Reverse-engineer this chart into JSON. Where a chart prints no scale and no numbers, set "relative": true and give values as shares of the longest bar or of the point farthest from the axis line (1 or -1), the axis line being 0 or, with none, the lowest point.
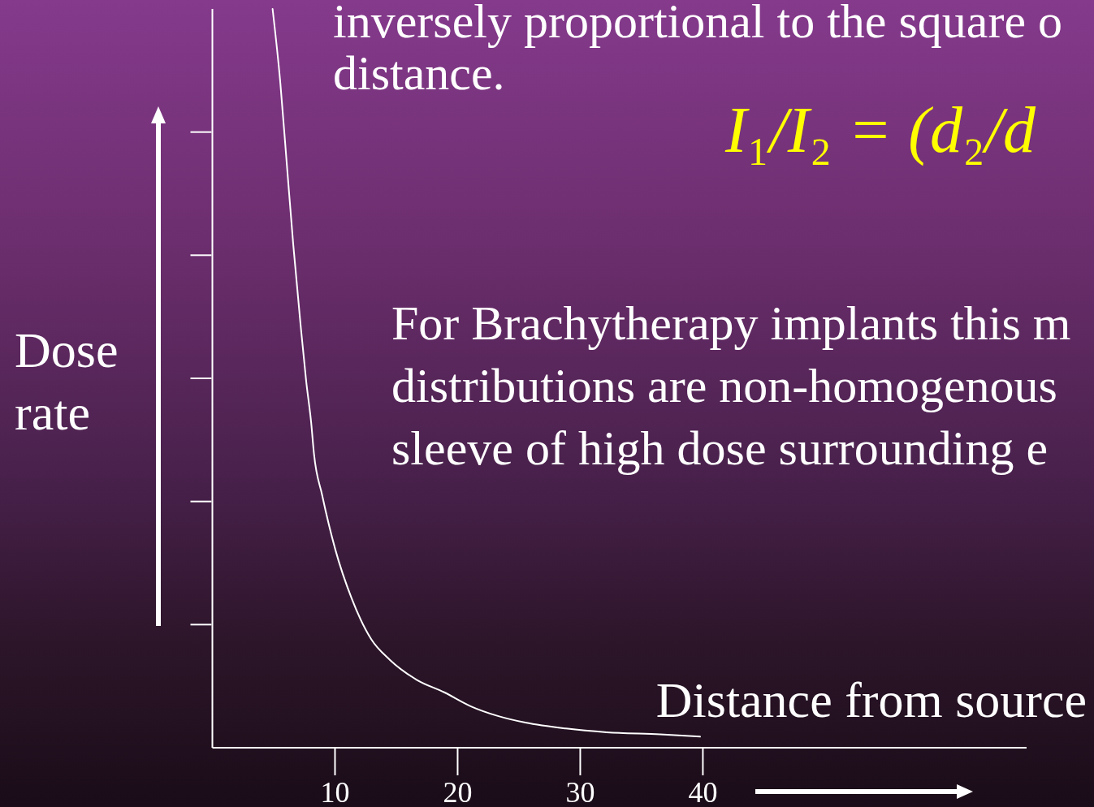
{
  "chart_data": {
    "type": "line",
    "relative": true,
    "xlabel": "Distance from source",
    "ylabel": "Dose rate",
    "annotations": [
      "inversely proportional to the square o",
      "distance.",
      "I₁/I₂ = (d₂/d",
      "For Brachytherapy implants this m",
      "distributions are non-homogenous",
      "sleeve of high dose surrounding e"
    ],
    "x": [
      4.91,
      5.53,
      6.06,
      6.59,
      7.19,
      7.65,
      8.05,
      8.29,
      8.95,
      10.03,
      11.36,
      12.95,
      14.47,
      16.66,
      18.91,
      21.09,
      23.28,
      25.53,
      28.84,
      32.15,
      36.52,
      39.77
    ],
    "values": [
      1,
      0.902,
      0.792,
      0.682,
      0.573,
      0.496,
      0.441,
      0.397,
      0.342,
      0.268,
      0.202,
      0.147,
      0.119,
      0.092,
      0.075,
      0.056,
      0.043,
      0.034,
      0.026,
      0.021,
      0.018,
      0.015
    ],
    "color": "#ffffff",
    "xlim": [
      0,
      66.4
    ],
    "xticks": [
      10,
      20,
      30,
      40
    ]
  }
}
